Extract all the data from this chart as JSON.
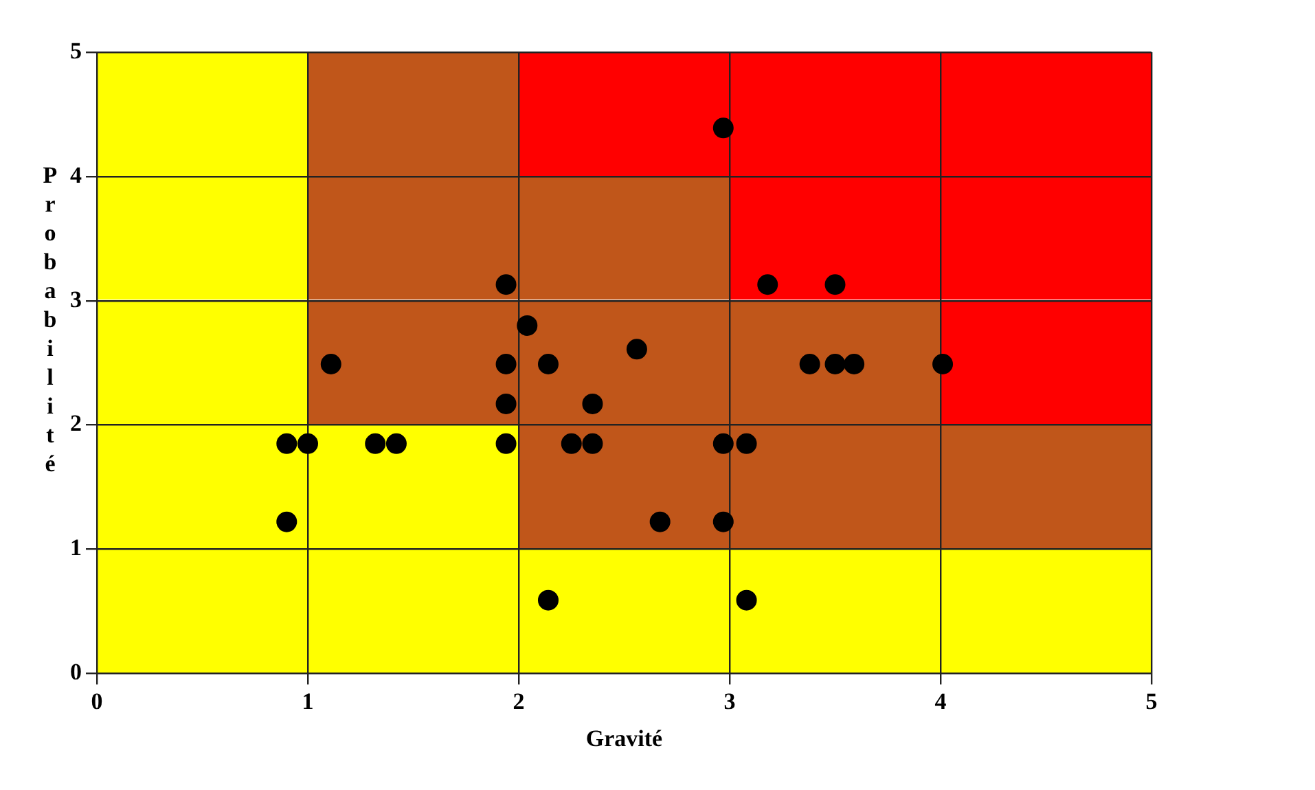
{
  "chart_data": {
    "type": "scatter",
    "xlabel": "Gravité",
    "ylabel": "Probabilité",
    "x": [
      2.97,
      1.94,
      3.18,
      3.5,
      2.04,
      1.11,
      1.94,
      2.14,
      2.56,
      3.38,
      3.5,
      3.59,
      4.01,
      1.94,
      2.35,
      0.9,
      1.0,
      1.32,
      1.42,
      1.94,
      2.25,
      2.35,
      2.97,
      3.08,
      0.9,
      2.67,
      2.97,
      2.14,
      3.08
    ],
    "values": [
      4.39,
      3.13,
      3.13,
      3.13,
      2.8,
      2.49,
      2.49,
      2.49,
      2.61,
      2.49,
      2.49,
      2.49,
      2.49,
      2.17,
      2.17,
      1.85,
      1.85,
      1.85,
      1.85,
      1.85,
      1.85,
      1.85,
      1.85,
      1.85,
      1.22,
      1.22,
      1.22,
      0.59,
      0.59
    ],
    "color": "#000000",
    "marker": "circle",
    "xlim": [
      0,
      5
    ],
    "ylim": [
      0,
      5
    ],
    "xticks": [
      0,
      1,
      2,
      3,
      4,
      5
    ],
    "yticks": [
      0,
      1,
      2,
      3,
      4,
      5
    ],
    "grid": true,
    "legend": false
  }
}
